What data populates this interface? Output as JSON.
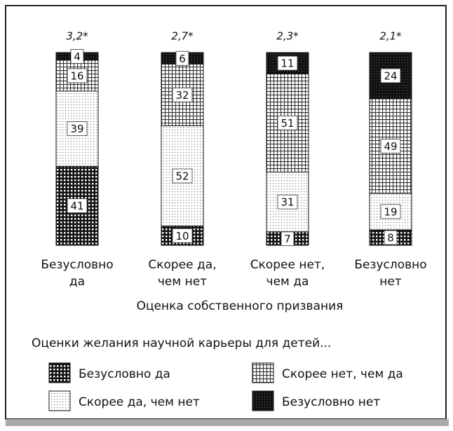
{
  "chart_data": {
    "type": "bar",
    "stacked": true,
    "annotations": [
      "3,2*",
      "2,7*",
      "2,3*",
      "2,1*"
    ],
    "categories": [
      [
        "Безусловно",
        "да"
      ],
      [
        "Скорее да,",
        "чем нет"
      ],
      [
        "Скорее нет,",
        "чем да"
      ],
      [
        "Безусловно",
        "нет"
      ]
    ],
    "x_label": "Оценка собственного призвания",
    "legend_title": "Оценки желания научной карьеры для детей...",
    "series": [
      {
        "name": "Безусловно да",
        "values": [
          41,
          10,
          7,
          8
        ]
      },
      {
        "name": "Скорее да, чем нет",
        "values": [
          39,
          52,
          31,
          19
        ]
      },
      {
        "name": "Скорее нет, чем да",
        "values": [
          16,
          32,
          51,
          49
        ]
      },
      {
        "name": "Безусловно нет",
        "values": [
          4,
          6,
          11,
          24
        ]
      }
    ]
  }
}
